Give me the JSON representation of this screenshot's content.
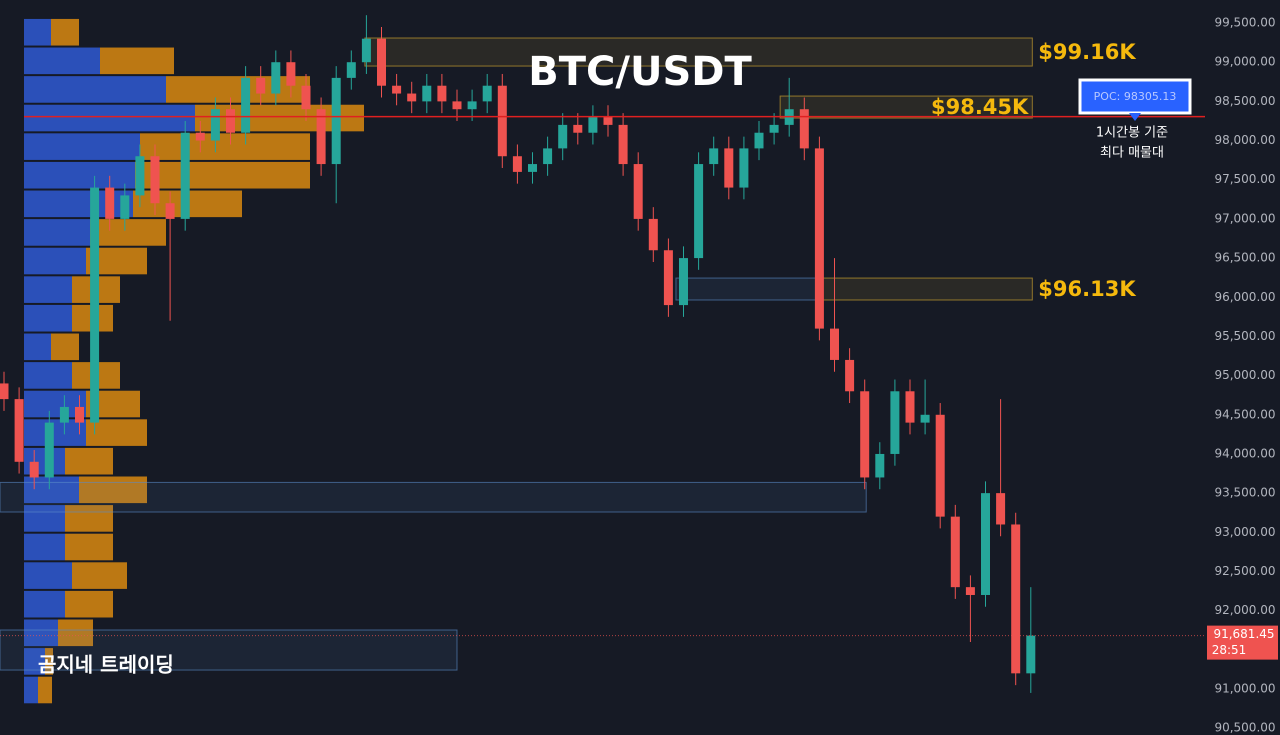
{
  "chart_data": {
    "type": "candlestick",
    "title": "BTC/USDT",
    "up_color": "#26a69a",
    "down_color": "#ef5350",
    "open": [
      94900,
      94700,
      93900,
      93700,
      94400,
      94600,
      94400,
      97400,
      97000,
      97300,
      97800,
      97200,
      97000,
      98100,
      98000,
      98400,
      98100,
      98800,
      98600,
      99000,
      98700,
      98400,
      97700,
      98800,
      99000,
      99300,
      98700,
      98600,
      98500,
      98700,
      98500,
      98400,
      98500,
      98700,
      97800,
      97600,
      97700,
      97900,
      98200,
      98100,
      98300,
      98200,
      97700,
      97000,
      96600,
      95900,
      96500,
      97700,
      97900,
      97400,
      97900,
      98100,
      98200,
      98400,
      97900,
      95600,
      95200,
      94800,
      93700,
      94000,
      94800,
      94400,
      94500,
      93200,
      92300,
      92200,
      93500,
      93100,
      91200
    ],
    "high": [
      95050,
      94850,
      94050,
      94550,
      94750,
      94750,
      97550,
      97550,
      97450,
      97950,
      97950,
      97350,
      98250,
      98250,
      98550,
      98550,
      98950,
      98950,
      99150,
      99150,
      98850,
      98550,
      98950,
      99150,
      99600,
      99450,
      98850,
      98750,
      98850,
      98850,
      98650,
      98650,
      98850,
      98850,
      97950,
      97850,
      98050,
      98350,
      98350,
      98450,
      98450,
      98350,
      97850,
      97150,
      96750,
      96650,
      97850,
      98050,
      98050,
      98050,
      98250,
      98350,
      98800,
      98550,
      98050,
      96500,
      95350,
      94950,
      94150,
      94950,
      94950,
      94950,
      94650,
      93350,
      92450,
      93650,
      94700,
      93250,
      92300
    ],
    "low": [
      94550,
      93750,
      93550,
      93550,
      94250,
      94250,
      94250,
      96850,
      96850,
      97150,
      97050,
      95700,
      96850,
      97850,
      97850,
      97950,
      97950,
      98450,
      98450,
      98550,
      98250,
      97550,
      97200,
      98650,
      98850,
      98550,
      98450,
      98350,
      98350,
      98350,
      98250,
      98250,
      98350,
      97650,
      97450,
      97450,
      97550,
      97750,
      97950,
      97950,
      98050,
      97550,
      96850,
      96450,
      95750,
      95750,
      96350,
      97550,
      97250,
      97250,
      97750,
      97950,
      98050,
      97750,
      95450,
      95050,
      94650,
      93550,
      93550,
      93850,
      94250,
      94250,
      93050,
      92150,
      91600,
      92050,
      92950,
      91050,
      90950
    ],
    "close": [
      94700,
      93900,
      93700,
      94400,
      94600,
      94400,
      97400,
      97000,
      97300,
      97800,
      97200,
      97000,
      98100,
      98000,
      98400,
      98100,
      98800,
      98600,
      99000,
      98700,
      98400,
      97700,
      98800,
      99000,
      99300,
      98700,
      98600,
      98500,
      98700,
      98500,
      98400,
      98500,
      98700,
      97800,
      97600,
      97700,
      97900,
      98200,
      98100,
      98300,
      98200,
      97700,
      97000,
      96600,
      95900,
      96500,
      97700,
      97900,
      97400,
      97900,
      98100,
      98200,
      98400,
      97900,
      95600,
      95200,
      94800,
      93700,
      94000,
      94800,
      94400,
      94500,
      93200,
      92300,
      92200,
      93500,
      93100,
      91200,
      91681.45
    ],
    "ylim": [
      90413,
      99794
    ],
    "yticks": [
      {
        "value": 90500,
        "label": "90,500.00"
      },
      {
        "value": 91000,
        "label": "91,000.00"
      },
      {
        "value": 91500,
        "label": "91,500.00"
      },
      {
        "value": 92000,
        "label": "92,000.00"
      },
      {
        "value": 92500,
        "label": "92,500.00"
      },
      {
        "value": 93000,
        "label": "93,000.00"
      },
      {
        "value": 93500,
        "label": "93,500.00"
      },
      {
        "value": 94000,
        "label": "94,000.00"
      },
      {
        "value": 94500,
        "label": "94,500.00"
      },
      {
        "value": 95000,
        "label": "95,000.00"
      },
      {
        "value": 95500,
        "label": "95,500.00"
      },
      {
        "value": 96000,
        "label": "96,000.00"
      },
      {
        "value": 96500,
        "label": "96,500.00"
      },
      {
        "value": 97000,
        "label": "97,000.00"
      },
      {
        "value": 97500,
        "label": "97,500.00"
      },
      {
        "value": 98000,
        "label": "98,000.00"
      },
      {
        "value": 98500,
        "label": "98,500.00"
      },
      {
        "value": 99000,
        "label": "99,000.00"
      },
      {
        "value": 99500,
        "label": "99,500.00"
      }
    ],
    "grid": false,
    "volume_profile": {
      "buy_color": "#2f5bd3",
      "sell_color": "#d98a10",
      "bins": [
        99565,
        99200,
        98835,
        98470,
        98105,
        97740,
        97375,
        97010,
        96645,
        96280,
        95915,
        95550,
        95185,
        94820,
        94455,
        94090,
        93725,
        93360,
        92995,
        92630,
        92265,
        91900,
        91535,
        91170,
        90805
      ],
      "buy": [
        27,
        76,
        142,
        171,
        116,
        111,
        109,
        66,
        62,
        48,
        48,
        27,
        48,
        62,
        62,
        41,
        55,
        41,
        41,
        48,
        41,
        34,
        21,
        14
      ],
      "sell": [
        28,
        74,
        144,
        169,
        170,
        175,
        109,
        76,
        61,
        48,
        41,
        28,
        48,
        54,
        61,
        48,
        68,
        48,
        48,
        55,
        48,
        35,
        8,
        14
      ]
    },
    "zones": [
      {
        "label": "$99.16K",
        "top": 99309,
        "bottom": 98951,
        "start": 23.9,
        "end": 68.1,
        "color": "#e0b030"
      },
      {
        "label": "$98.45K",
        "top": 98568,
        "bottom": 98287,
        "start": 51.4,
        "end": 68.1,
        "color": "#e0b030"
      },
      {
        "label": "$96.13K",
        "top": 96245,
        "bottom": 95965,
        "start": 54,
        "end": 68.1,
        "color": "#e0b030"
      },
      {
        "top": 96245,
        "bottom": 95965,
        "start": 44.5,
        "end": 54,
        "color": "#5b8cc8"
      },
      {
        "top": 93637,
        "bottom": 93259,
        "start": -0.3,
        "end": 57.1,
        "color": "#5b8cc8"
      },
      {
        "top": 91753,
        "bottom": 91242,
        "start": -0.3,
        "end": 30,
        "color": "#5b8cc8"
      }
    ],
    "poc": {
      "value": 98305.13,
      "label": "POC: 98305.13",
      "note": [
        "1시간봉 기준",
        "최다 매물대"
      ]
    },
    "last_price": {
      "value": 91681.45,
      "label": "91,681.45",
      "countdown": "28:51"
    },
    "watermark": "곰지네 트레이딩"
  }
}
